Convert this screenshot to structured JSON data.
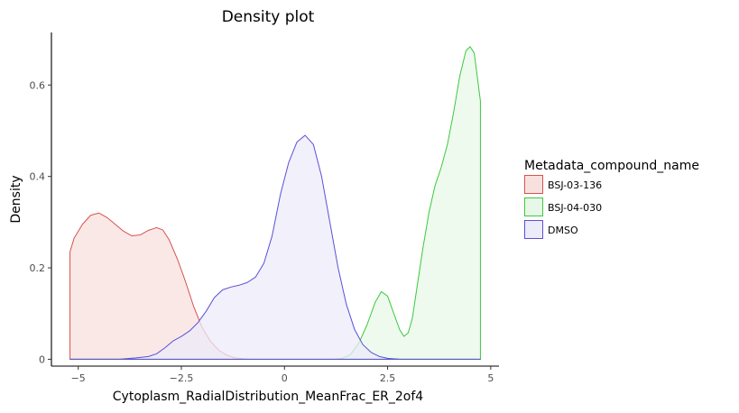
{
  "chart_data": {
    "type": "area",
    "title": "Density plot",
    "xlabel": "Cytoplasm_RadialDistribution_MeanFrac_ER_2of4",
    "ylabel": "Density",
    "xlim": [
      -5.65,
      5.2
    ],
    "ylim": [
      -0.015,
      0.715
    ],
    "x_ticks": [
      -5,
      -2.5,
      0,
      2.5,
      5
    ],
    "x_tick_labels": [
      "−5",
      "−2.5",
      "0",
      "2.5",
      "5"
    ],
    "y_ticks": [
      0,
      0.2,
      0.4,
      0.6
    ],
    "y_tick_labels": [
      "0",
      "0.2",
      "0.4",
      "0.6"
    ],
    "grid": false,
    "legend": {
      "title": "Metadata_compound_name",
      "placement": "right"
    },
    "series": [
      {
        "name": "BSJ-03-136",
        "color": "#d5534f",
        "fill": "#f8e0df",
        "points": [
          [
            -5.2,
            0.235
          ],
          [
            -5.1,
            0.265
          ],
          [
            -4.9,
            0.295
          ],
          [
            -4.7,
            0.315
          ],
          [
            -4.5,
            0.32
          ],
          [
            -4.3,
            0.31
          ],
          [
            -4.1,
            0.295
          ],
          [
            -3.9,
            0.28
          ],
          [
            -3.7,
            0.27
          ],
          [
            -3.5,
            0.272
          ],
          [
            -3.3,
            0.282
          ],
          [
            -3.1,
            0.288
          ],
          [
            -2.95,
            0.283
          ],
          [
            -2.8,
            0.262
          ],
          [
            -2.6,
            0.22
          ],
          [
            -2.4,
            0.17
          ],
          [
            -2.2,
            0.115
          ],
          [
            -2.0,
            0.07
          ],
          [
            -1.8,
            0.04
          ],
          [
            -1.6,
            0.02
          ],
          [
            -1.4,
            0.009
          ],
          [
            -1.2,
            0.003
          ],
          [
            -1.0,
            0.001
          ],
          [
            -0.8,
            0.0
          ],
          [
            4.75,
            0.0
          ]
        ]
      },
      {
        "name": "BSJ-04-030",
        "color": "#3dc93d",
        "fill": "#e8f8e8",
        "points": [
          [
            -5.2,
            0.0
          ],
          [
            1.2,
            0.0
          ],
          [
            1.4,
            0.002
          ],
          [
            1.6,
            0.01
          ],
          [
            1.8,
            0.035
          ],
          [
            2.0,
            0.075
          ],
          [
            2.2,
            0.125
          ],
          [
            2.35,
            0.148
          ],
          [
            2.5,
            0.138
          ],
          [
            2.65,
            0.1
          ],
          [
            2.8,
            0.063
          ],
          [
            2.9,
            0.05
          ],
          [
            3.0,
            0.058
          ],
          [
            3.1,
            0.09
          ],
          [
            3.2,
            0.15
          ],
          [
            3.35,
            0.24
          ],
          [
            3.5,
            0.32
          ],
          [
            3.65,
            0.38
          ],
          [
            3.8,
            0.42
          ],
          [
            3.95,
            0.47
          ],
          [
            4.1,
            0.54
          ],
          [
            4.25,
            0.62
          ],
          [
            4.4,
            0.675
          ],
          [
            4.5,
            0.684
          ],
          [
            4.6,
            0.67
          ],
          [
            4.7,
            0.6
          ],
          [
            4.75,
            0.565
          ],
          [
            4.75,
            0.0
          ]
        ]
      },
      {
        "name": "DMSO",
        "color": "#5a50d6",
        "fill": "#ecebfa",
        "points": [
          [
            -5.2,
            0.0
          ],
          [
            -4.0,
            0.0
          ],
          [
            -3.6,
            0.003
          ],
          [
            -3.3,
            0.006
          ],
          [
            -3.1,
            0.012
          ],
          [
            -2.9,
            0.025
          ],
          [
            -2.7,
            0.04
          ],
          [
            -2.5,
            0.05
          ],
          [
            -2.3,
            0.062
          ],
          [
            -2.1,
            0.08
          ],
          [
            -1.9,
            0.105
          ],
          [
            -1.7,
            0.135
          ],
          [
            -1.5,
            0.152
          ],
          [
            -1.3,
            0.158
          ],
          [
            -1.1,
            0.162
          ],
          [
            -0.9,
            0.168
          ],
          [
            -0.7,
            0.18
          ],
          [
            -0.5,
            0.21
          ],
          [
            -0.3,
            0.27
          ],
          [
            -0.1,
            0.36
          ],
          [
            0.1,
            0.43
          ],
          [
            0.3,
            0.475
          ],
          [
            0.5,
            0.49
          ],
          [
            0.7,
            0.47
          ],
          [
            0.9,
            0.4
          ],
          [
            1.1,
            0.3
          ],
          [
            1.3,
            0.2
          ],
          [
            1.5,
            0.12
          ],
          [
            1.7,
            0.065
          ],
          [
            1.9,
            0.032
          ],
          [
            2.1,
            0.015
          ],
          [
            2.3,
            0.006
          ],
          [
            2.5,
            0.002
          ],
          [
            2.8,
            0.0
          ],
          [
            4.75,
            0.0
          ]
        ]
      }
    ]
  }
}
